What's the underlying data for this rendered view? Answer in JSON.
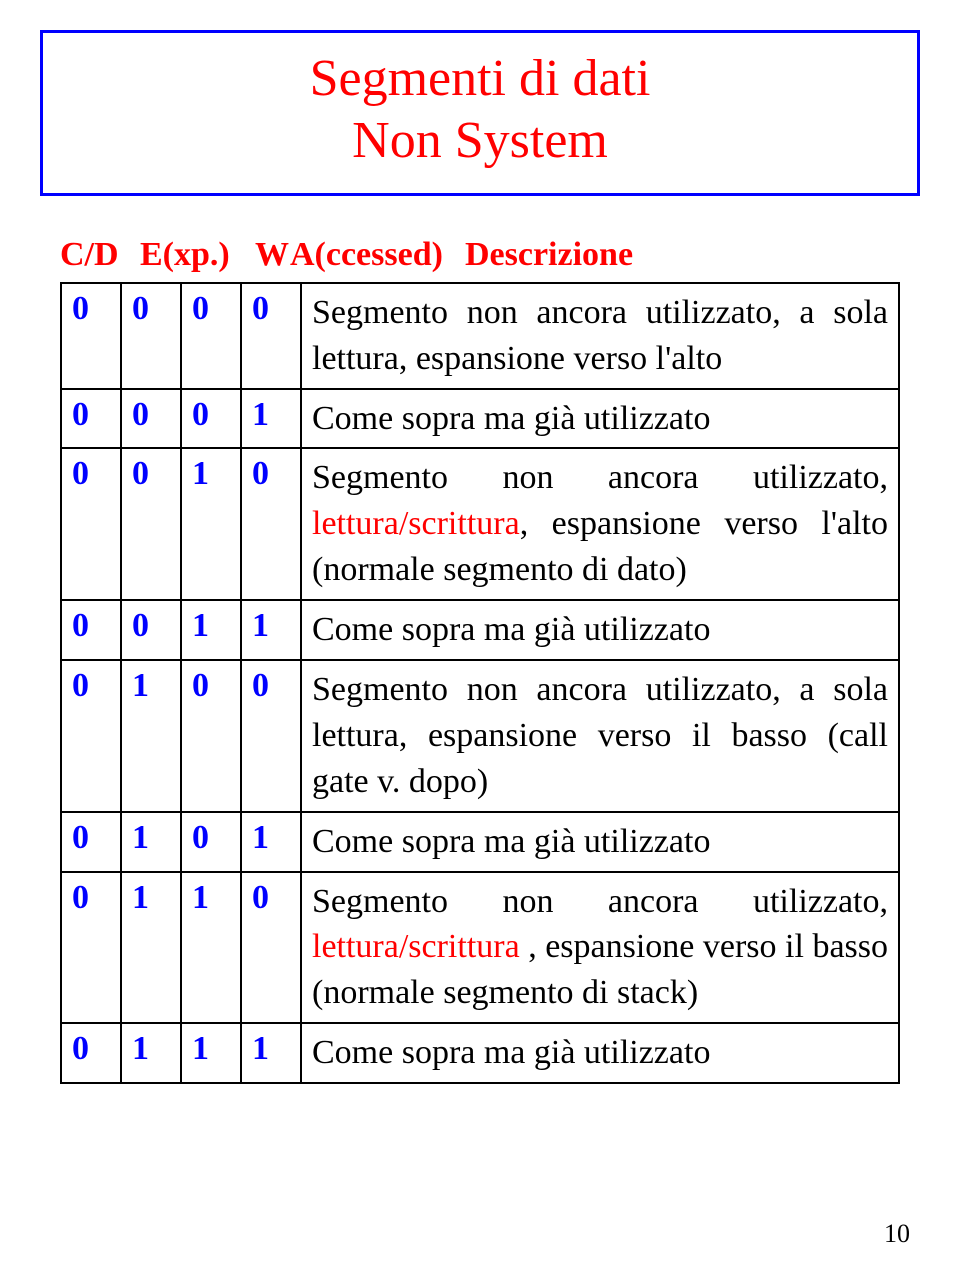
{
  "title": {
    "line1": "Segmenti di dati",
    "line2": "Non System"
  },
  "headers": {
    "cd": "C/D",
    "exp": "E(xp.)",
    "w": "W",
    "accessed": "A(ccessed)",
    "descrizione": "Descrizione"
  },
  "rows": [
    {
      "b0": "0",
      "b1": "0",
      "b2": "0",
      "b3": "0",
      "desc": "Segmento non ancora utilizzato, a sola lettura, espansione verso l'alto",
      "ls": null
    },
    {
      "b0": "0",
      "b1": "0",
      "b2": "0",
      "b3": "1",
      "desc": "Come sopra ma già utilizzato",
      "ls": null
    },
    {
      "b0": "0",
      "b1": "0",
      "b2": "1",
      "b3": "0",
      "desc_pre": "Segmento non ancora utilizzato, ",
      "ls": "lettura/scrittura",
      "desc_post": ", espansione verso l'alto (normale segmento di dato)"
    },
    {
      "b0": "0",
      "b1": "0",
      "b2": "1",
      "b3": "1",
      "desc": "Come sopra ma già utilizzato",
      "ls": null
    },
    {
      "b0": "0",
      "b1": "1",
      "b2": "0",
      "b3": "0",
      "desc": "Segmento non ancora utilizzato, a sola lettura, espansione verso il basso (call gate v. dopo)",
      "ls": null
    },
    {
      "b0": "0",
      "b1": "1",
      "b2": "0",
      "b3": "1",
      "desc": "Come sopra ma già utilizzato",
      "ls": null
    },
    {
      "b0": "0",
      "b1": "1",
      "b2": "1",
      "b3": "0",
      "desc_pre": "Segmento non ancora utilizzato, ",
      "ls": "lettura/scrittura ",
      "desc_post": ", espansione verso il basso (normale segmento di  stack)"
    },
    {
      "b0": "0",
      "b1": "1",
      "b2": "1",
      "b3": "1",
      "desc": "Come sopra ma già utilizzato",
      "ls": null
    }
  ],
  "page_number": "10",
  "colors": {
    "title_border": "#0000ff",
    "title_text": "#ff0000",
    "header_text": "#ff0000",
    "bit_text": "#0000ff",
    "desc_text": "#000000",
    "ls_text": "#ff0000",
    "table_border": "#000000",
    "background": "#ffffff"
  }
}
